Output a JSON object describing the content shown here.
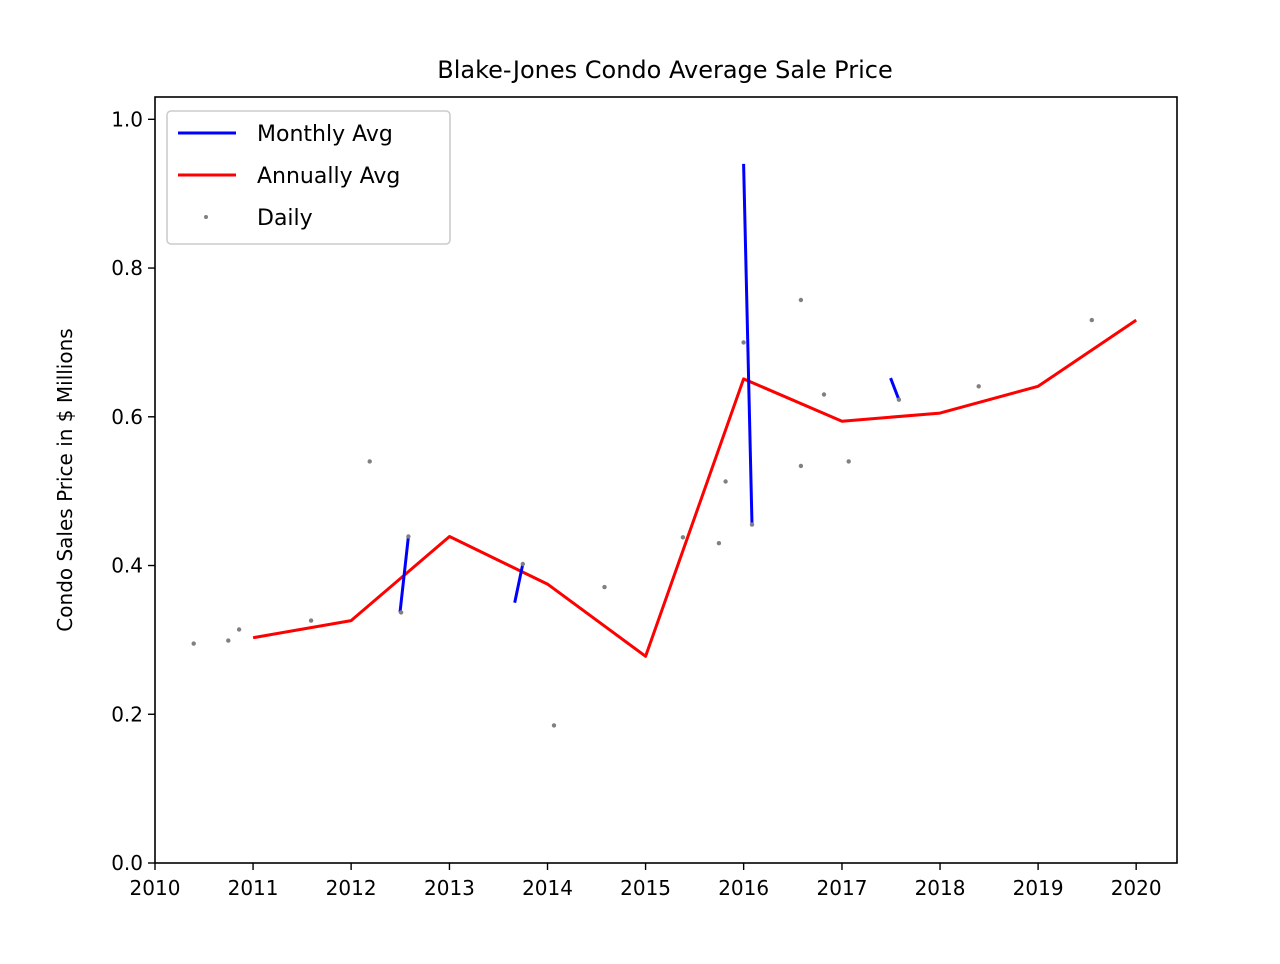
{
  "chart_data": {
    "type": "line",
    "title": "Blake-Jones Condo Average Sale Price",
    "xlabel": "",
    "ylabel": "Condo Sales Price in $ Millions",
    "xlim": [
      "2010-01-01",
      "2020-06-01"
    ],
    "ylim": [
      0.0,
      1.03
    ],
    "x_ticks": [
      "2010",
      "2011",
      "2012",
      "2013",
      "2014",
      "2015",
      "2016",
      "2017",
      "2018",
      "2019",
      "2020"
    ],
    "y_ticks": [
      "0.0",
      "0.2",
      "0.4",
      "0.6",
      "0.8",
      "1.0"
    ],
    "grid": false,
    "legend": {
      "placement": "upper left",
      "entries": [
        "Monthly Avg",
        "Annually Avg",
        "Daily"
      ]
    },
    "colors": {
      "monthly": "#0000ff",
      "annually": "#ff0000",
      "daily": "#808080",
      "axes": "#000000",
      "legend_border": "#cccccc"
    },
    "series": [
      {
        "name": "Monthly Avg",
        "kind": "line",
        "segments": [
          [
            {
              "x": "2012-07-01",
              "y": 0.337
            },
            {
              "x": "2012-08-01",
              "y": 0.439
            }
          ],
          [
            {
              "x": "2013-09-01",
              "y": 0.35
            },
            {
              "x": "2013-10-01",
              "y": 0.402
            }
          ],
          [
            {
              "x": "2016-01-01",
              "y": 0.94
            },
            {
              "x": "2016-02-01",
              "y": 0.455
            }
          ],
          [
            {
              "x": "2017-07-01",
              "y": 0.652
            },
            {
              "x": "2017-08-01",
              "y": 0.623
            }
          ]
        ]
      },
      {
        "name": "Annually Avg",
        "kind": "line",
        "points": [
          {
            "x": "2011-01-01",
            "y": 0.303
          },
          {
            "x": "2012-01-01",
            "y": 0.326
          },
          {
            "x": "2013-01-01",
            "y": 0.439
          },
          {
            "x": "2014-01-01",
            "y": 0.375
          },
          {
            "x": "2015-01-01",
            "y": 0.278
          },
          {
            "x": "2016-01-01",
            "y": 0.651
          },
          {
            "x": "2017-01-01",
            "y": 0.594
          },
          {
            "x": "2018-01-01",
            "y": 0.605
          },
          {
            "x": "2019-01-01",
            "y": 0.641
          },
          {
            "x": "2020-01-01",
            "y": 0.73
          }
        ]
      },
      {
        "name": "Daily",
        "kind": "scatter",
        "points": [
          {
            "x": "2010-05-25",
            "y": 0.295
          },
          {
            "x": "2010-10-01",
            "y": 0.299
          },
          {
            "x": "2010-11-10",
            "y": 0.314
          },
          {
            "x": "2011-08-05",
            "y": 0.326
          },
          {
            "x": "2012-03-10",
            "y": 0.54
          },
          {
            "x": "2012-07-05",
            "y": 0.337
          },
          {
            "x": "2012-08-01",
            "y": 0.439
          },
          {
            "x": "2013-10-01",
            "y": 0.402
          },
          {
            "x": "2014-01-25",
            "y": 0.185
          },
          {
            "x": "2014-08-01",
            "y": 0.371
          },
          {
            "x": "2015-05-20",
            "y": 0.438
          },
          {
            "x": "2015-10-01",
            "y": 0.43
          },
          {
            "x": "2015-10-26",
            "y": 0.513
          },
          {
            "x": "2016-01-01",
            "y": 0.7
          },
          {
            "x": "2016-02-01",
            "y": 0.455
          },
          {
            "x": "2016-08-01",
            "y": 0.757
          },
          {
            "x": "2016-08-01",
            "y": 0.534
          },
          {
            "x": "2016-10-26",
            "y": 0.63
          },
          {
            "x": "2017-01-26",
            "y": 0.54
          },
          {
            "x": "2017-08-01",
            "y": 0.623
          },
          {
            "x": "2018-05-25",
            "y": 0.641
          },
          {
            "x": "2019-07-20",
            "y": 0.73
          }
        ]
      }
    ]
  }
}
